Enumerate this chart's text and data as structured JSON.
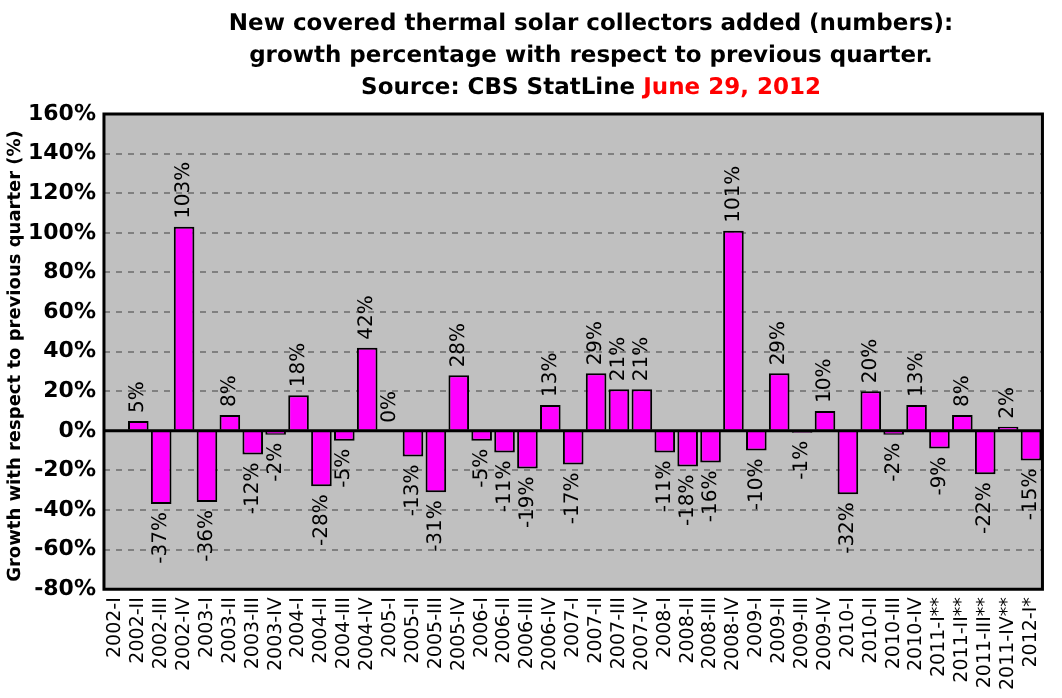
{
  "chart_data": {
    "type": "bar",
    "title": "New covered thermal solar collectors added (numbers):\ngrowth percentage with respect to previous quarter.",
    "subtitle": "Source: CBS StatLine",
    "annotations": [
      "June 29, 2012"
    ],
    "ylabel": "Growth with respect to previous quarter (%)",
    "categories": [
      "2002-I",
      "2002-II",
      "2002-III",
      "2002-IV",
      "2003-I",
      "2003-II",
      "2003-III",
      "2003-IV",
      "2004-I",
      "2004-II",
      "2004-III",
      "2004-IV",
      "2005-I",
      "2005-II",
      "2005-III",
      "2005-IV",
      "2006-I",
      "2006-II",
      "2006-III",
      "2006-IV",
      "2007-I",
      "2007-II",
      "2007-III",
      "2007-IV",
      "2008-I",
      "2008-II",
      "2008-III",
      "2008-IV",
      "2009-I",
      "2009-II",
      "2009-III",
      "2009-IV",
      "2010-I",
      "2010-II",
      "2010-III",
      "2010-IV",
      "2011-I**",
      "2011-II**",
      "2011-III**",
      "2011-IV**",
      "2012-I*"
    ],
    "values": [
      null,
      5,
      -37,
      103,
      -36,
      8,
      -12,
      -2,
      18,
      -28,
      -5,
      42,
      0,
      -13,
      -31,
      28,
      -5,
      -11,
      -19,
      13,
      -17,
      29,
      21,
      21,
      -11,
      -18,
      -16,
      101,
      -10,
      29,
      -1,
      10,
      -32,
      20,
      -2,
      13,
      -9,
      8,
      -22,
      2,
      -15
    ],
    "value_labels": [
      null,
      "5%",
      "-37%",
      "103%",
      "-36%",
      "8%",
      "-12%",
      "-2%",
      "18%",
      "-28%",
      "-5%",
      "42%",
      "0%",
      "-13%",
      "-31%",
      "28%",
      "-5%",
      "-11%",
      "-19%",
      "13%",
      "-17%",
      "29%",
      "21%",
      "21%",
      "-11%",
      "-18%",
      "-16%",
      "101%",
      "-10%",
      "29%",
      "-1%",
      "10%",
      "-32%",
      "20%",
      "-2%",
      "13%",
      "-9%",
      "8%",
      "-22%",
      "2%",
      "-15%"
    ],
    "color": "#ff00ff",
    "ylim": [
      -80,
      160
    ],
    "yticks": [
      {
        "value": -80,
        "label": "-80%"
      },
      {
        "value": -60,
        "label": "-60%"
      },
      {
        "value": -40,
        "label": "-40%"
      },
      {
        "value": -20,
        "label": "-20%"
      },
      {
        "value": 0,
        "label": "0%"
      },
      {
        "value": 20,
        "label": "20%"
      },
      {
        "value": 40,
        "label": "40%"
      },
      {
        "value": 60,
        "label": "60%"
      },
      {
        "value": 80,
        "label": "80%"
      },
      {
        "value": 100,
        "label": "100%"
      },
      {
        "value": 120,
        "label": "120%"
      },
      {
        "value": 140,
        "label": "140%"
      },
      {
        "value": 160,
        "label": "160%"
      }
    ],
    "grid": "y",
    "legend": false
  }
}
